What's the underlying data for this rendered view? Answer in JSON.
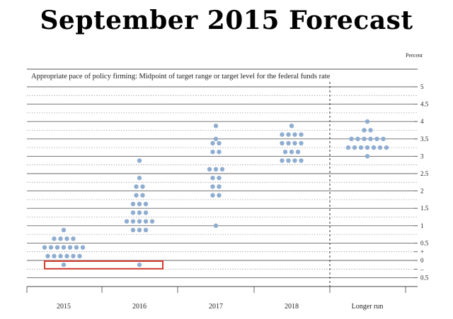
{
  "header": {
    "title": "September 2015 Forecast"
  },
  "chart_data": {
    "type": "scatter",
    "title": "Appropriate pace of policy firming: Midpoint of target range or target level for the federal funds rate",
    "unit": "Percent",
    "categories": [
      "2015",
      "2016",
      "2017",
      "2018",
      "Longer run"
    ],
    "ylim": [
      -0.5,
      5
    ],
    "y_ticks": [
      {
        "value": 5,
        "label": "5"
      },
      {
        "value": 4.5,
        "label": "4.5"
      },
      {
        "value": 4,
        "label": "4"
      },
      {
        "value": 3.5,
        "label": "3.5"
      },
      {
        "value": 3,
        "label": "3"
      },
      {
        "value": 2.5,
        "label": "2.5"
      },
      {
        "value": 2,
        "label": "2"
      },
      {
        "value": 1.5,
        "label": "1.5"
      },
      {
        "value": 1,
        "label": "1"
      },
      {
        "value": 0.5,
        "label": "0.5"
      },
      {
        "value": 0.25,
        "label": "+"
      },
      {
        "value": 0,
        "label": "0"
      },
      {
        "value": -0.25,
        "label": "–"
      },
      {
        "value": -0.5,
        "label": "0.5"
      }
    ],
    "grid": "dotted horizontal lines every 0.25, solid every 0.5",
    "divider_before": "Longer run",
    "dot_color": "#8fadd0",
    "highlight_color": "#d03a2e",
    "highlight_note": "red box around the negative-rate projections for 2015 and 2016",
    "dots": [
      {
        "year": "2015",
        "value": -0.125,
        "count": 1
      },
      {
        "year": "2015",
        "value": 0.125,
        "count": 6
      },
      {
        "year": "2015",
        "value": 0.375,
        "count": 7
      },
      {
        "year": "2015",
        "value": 0.625,
        "count": 4
      },
      {
        "year": "2015",
        "value": 0.875,
        "count": 1
      },
      {
        "year": "2016",
        "value": -0.125,
        "count": 1
      },
      {
        "year": "2016",
        "value": 0.875,
        "count": 3
      },
      {
        "year": "2016",
        "value": 1.125,
        "count": 5
      },
      {
        "year": "2016",
        "value": 1.375,
        "count": 3
      },
      {
        "year": "2016",
        "value": 1.625,
        "count": 3
      },
      {
        "year": "2016",
        "value": 1.875,
        "count": 2
      },
      {
        "year": "2016",
        "value": 2.125,
        "count": 2
      },
      {
        "year": "2016",
        "value": 2.375,
        "count": 1
      },
      {
        "year": "2016",
        "value": 2.875,
        "count": 1
      },
      {
        "year": "2017",
        "value": 1.0,
        "count": 1
      },
      {
        "year": "2017",
        "value": 1.875,
        "count": 2
      },
      {
        "year": "2017",
        "value": 2.125,
        "count": 2
      },
      {
        "year": "2017",
        "value": 2.375,
        "count": 2
      },
      {
        "year": "2017",
        "value": 2.625,
        "count": 3
      },
      {
        "year": "2017",
        "value": 3.125,
        "count": 2
      },
      {
        "year": "2017",
        "value": 3.375,
        "count": 2
      },
      {
        "year": "2017",
        "value": 3.5,
        "count": 1
      },
      {
        "year": "2017",
        "value": 3.875,
        "count": 1
      },
      {
        "year": "2018",
        "value": 2.875,
        "count": 4
      },
      {
        "year": "2018",
        "value": 3.125,
        "count": 3
      },
      {
        "year": "2018",
        "value": 3.375,
        "count": 4
      },
      {
        "year": "2018",
        "value": 3.625,
        "count": 4
      },
      {
        "year": "2018",
        "value": 3.875,
        "count": 1
      },
      {
        "year": "Longer run",
        "value": 3.0,
        "count": 1
      },
      {
        "year": "Longer run",
        "value": 3.25,
        "count": 7
      },
      {
        "year": "Longer run",
        "value": 3.5,
        "count": 6
      },
      {
        "year": "Longer run",
        "value": 3.75,
        "count": 2
      },
      {
        "year": "Longer run",
        "value": 4.0,
        "count": 1
      }
    ]
  }
}
